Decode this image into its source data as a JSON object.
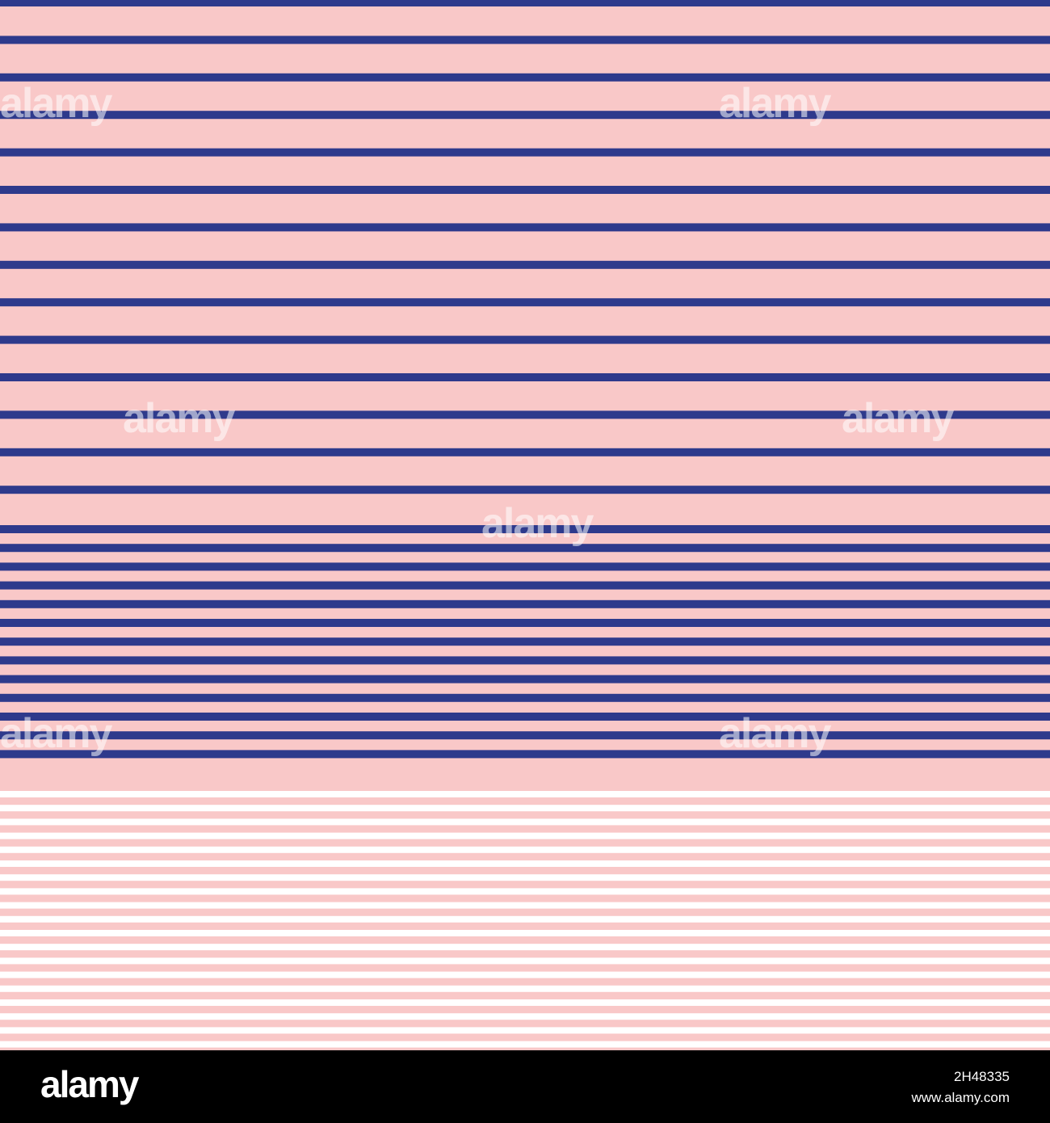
{
  "watermark": "alamy",
  "footer": {
    "logo": "alamy",
    "image_id": "2H48335",
    "url": "www.alamy.com"
  }
}
